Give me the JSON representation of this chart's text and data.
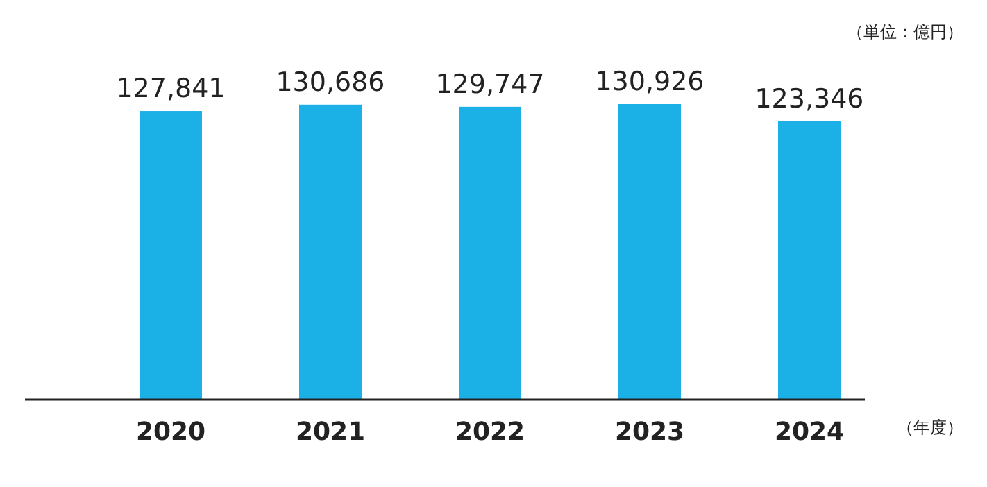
{
  "chart_data": {
    "type": "bar",
    "ylabel": "（単位：億円）",
    "xlabel": "（年度）",
    "categories": [
      "2020",
      "2021",
      "2022",
      "2023",
      "2024"
    ],
    "values": [
      127841,
      130686,
      129747,
      130926,
      123346
    ],
    "value_labels": [
      "127,841",
      "130,686",
      "129,747",
      "130,926",
      "123,346"
    ],
    "color": "#1cb1e6"
  }
}
